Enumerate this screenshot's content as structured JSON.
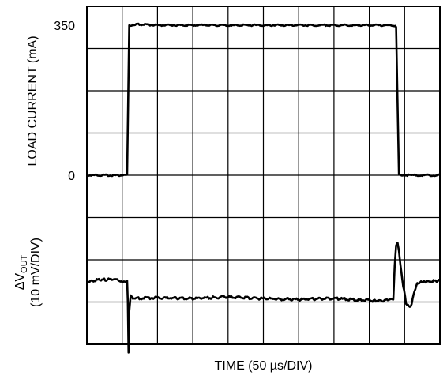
{
  "chart_data": {
    "type": "line",
    "title": "",
    "xlabel": "TIME (50 µs/DIV)",
    "grid": true,
    "x_divisions": 10,
    "y_divisions": 8,
    "x_unit": "µs",
    "x_per_div": 50,
    "xlim": [
      0,
      500
    ],
    "load_current_axis": {
      "label": "LOAD CURRENT (mA)",
      "ticks": [
        {
          "value": 350,
          "label": "350"
        },
        {
          "value": 0,
          "label": "0"
        }
      ],
      "ylim": [
        -175,
        385
      ]
    },
    "vout_axis": {
      "label_delta": "ΔV",
      "label_sub": "OUT",
      "label_line2": "(10 mV/DIV)",
      "mv_per_div": 10
    },
    "series": [
      {
        "name": "LOAD CURRENT",
        "unit": "mA",
        "x": [
          0,
          57,
          60,
          62,
          70,
          100,
          434,
          438,
          442,
          445,
          500
        ],
        "y": [
          0,
          0,
          350,
          350,
          352,
          350,
          350,
          345,
          0,
          0,
          0
        ]
      },
      {
        "name": "ΔV_OUT",
        "unit": "mV",
        "x": [
          0,
          20,
          40,
          52,
          57,
          58,
          59,
          60,
          62,
          65,
          70,
          100,
          150,
          200,
          250,
          300,
          350,
          400,
          420,
          434,
          436,
          438,
          440,
          442,
          444,
          448,
          452,
          456,
          460,
          464,
          468,
          472,
          476,
          480,
          500
        ],
        "y": [
          -5,
          -4.5,
          -4.5,
          -5,
          -5,
          -10,
          -22,
          -12,
          -8,
          -9,
          -9,
          -8.8,
          -9,
          -8.6,
          -9,
          -9.2,
          -9,
          -9.4,
          -9.6,
          -9,
          -1,
          3.5,
          4,
          2,
          -1,
          -6,
          -10,
          -11,
          -10.5,
          -7,
          -5.5,
          -5.2,
          -5,
          -5,
          -4.8
        ]
      }
    ]
  }
}
